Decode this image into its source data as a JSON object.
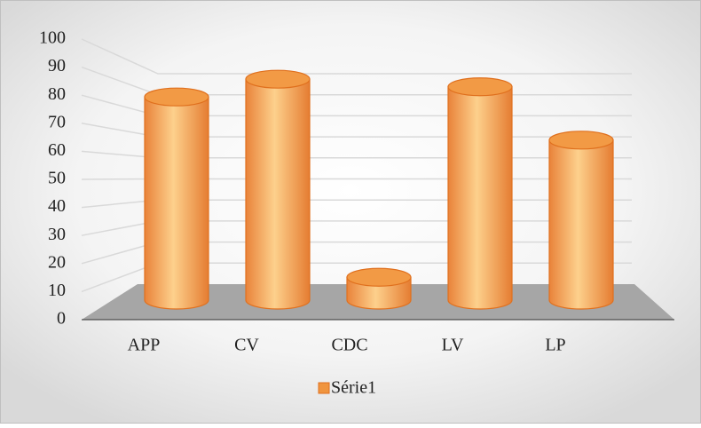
{
  "chart_data": {
    "type": "bar3d",
    "categories": [
      "APP",
      "CV",
      "CDC",
      "LV",
      "LP"
    ],
    "series": [
      {
        "name": "Série1",
        "color": "#f0953f",
        "values": [
          80,
          87,
          9,
          84,
          63
        ]
      }
    ],
    "ylim": [
      0,
      100
    ],
    "yticks": [
      0,
      10,
      20,
      30,
      40,
      50,
      60,
      70,
      80,
      90,
      100
    ],
    "grid": true,
    "legend": "bottom"
  }
}
